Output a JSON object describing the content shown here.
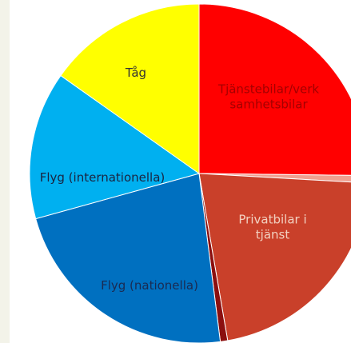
{
  "chart_data": {
    "type": "pie",
    "title": "",
    "slices": [
      {
        "label": "Tjänstebilar/verksamhetsbilar",
        "label_lines": [
          "Tjänstebilar/verk",
          "samhetsbilar"
        ],
        "value": 25.2,
        "color": "#ff0000",
        "label_color": "#a40000"
      },
      {
        "label": "",
        "label_lines": [],
        "value": 0.7,
        "color": "#f0a090",
        "label_color": "#000000"
      },
      {
        "label": "Privatbilar i tjänst",
        "label_lines": [
          "Privatbilar i",
          "tjänst"
        ],
        "value": 21.4,
        "color": "#c9402a",
        "label_color": "#f2d0c0"
      },
      {
        "label": "",
        "label_lines": [],
        "value": 0.7,
        "color": "#8b0f0f",
        "label_color": "#000000"
      },
      {
        "label": "Flyg (nationella)",
        "label_lines": [
          "Flyg (nationella)"
        ],
        "value": 22.7,
        "color": "#0070c0",
        "label_color": "#1a2b52"
      },
      {
        "label": "Flyg (internationella)",
        "label_lines": [
          "Flyg (internationella)"
        ],
        "value": 14.1,
        "color": "#00b0f0",
        "label_color": "#1a2440"
      },
      {
        "label": "Tåg",
        "label_lines": [
          "Tåg"
        ],
        "value": 15.2,
        "color": "#ffff00",
        "label_color": "#333333"
      }
    ]
  }
}
